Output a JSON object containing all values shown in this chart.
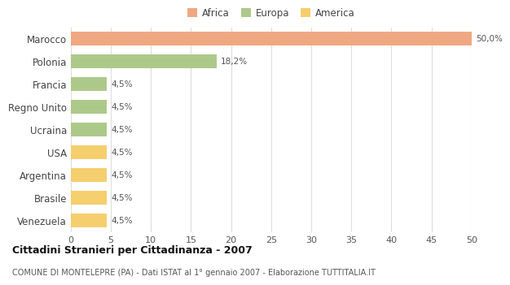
{
  "categories": [
    "Marocco",
    "Polonia",
    "Francia",
    "Regno Unito",
    "Ucraina",
    "USA",
    "Argentina",
    "Brasile",
    "Venezuela"
  ],
  "values": [
    50.0,
    18.2,
    4.5,
    4.5,
    4.5,
    4.5,
    4.5,
    4.5,
    4.5
  ],
  "labels": [
    "50,0%",
    "18,2%",
    "4,5%",
    "4,5%",
    "4,5%",
    "4,5%",
    "4,5%",
    "4,5%",
    "4,5%"
  ],
  "colors": [
    "#f0a882",
    "#adc98a",
    "#adc98a",
    "#adc98a",
    "#adc98a",
    "#f5ce6e",
    "#f5ce6e",
    "#f5ce6e",
    "#f5ce6e"
  ],
  "legend": [
    {
      "label": "Africa",
      "color": "#f0a882"
    },
    {
      "label": "Europa",
      "color": "#adc98a"
    },
    {
      "label": "America",
      "color": "#f5ce6e"
    }
  ],
  "xlim": [
    0,
    50
  ],
  "xticks": [
    0,
    5,
    10,
    15,
    20,
    25,
    30,
    35,
    40,
    45,
    50
  ],
  "title": "Cittadini Stranieri per Cittadinanza - 2007",
  "subtitle": "COMUNE DI MONTELEPRE (PA) - Dati ISTAT al 1° gennaio 2007 - Elaborazione TUTTITALIA.IT",
  "background_color": "#ffffff",
  "bar_height": 0.6,
  "grid_color": "#dddddd"
}
